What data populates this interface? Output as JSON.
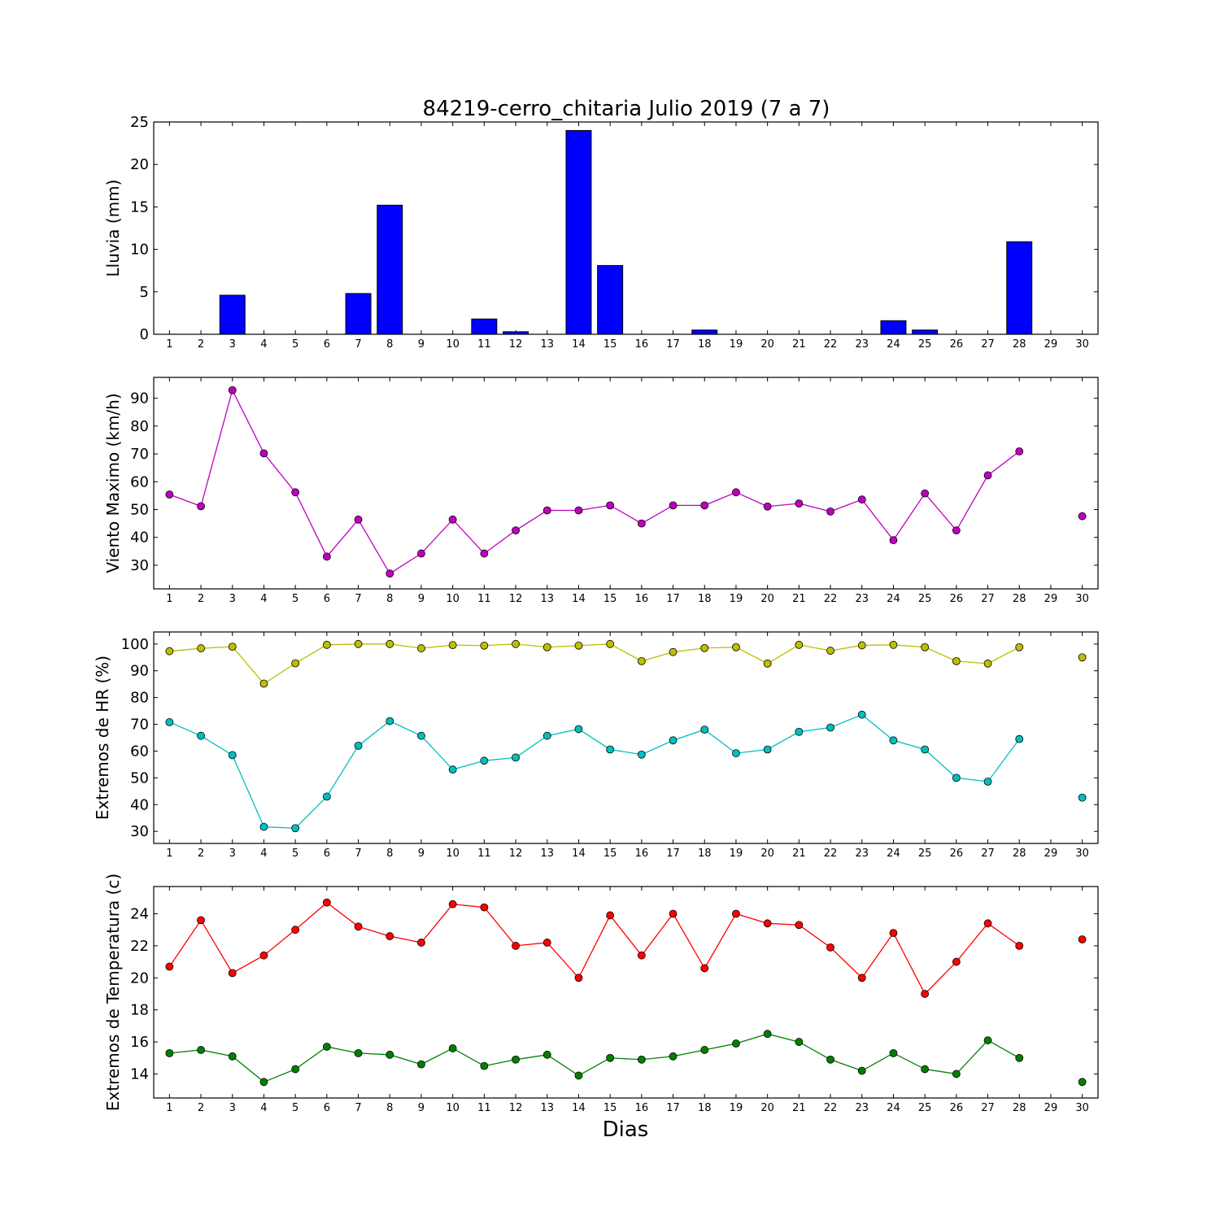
{
  "title": "84219-cerro_chitaria Julio 2019  (7 a 7)",
  "xlabel": "Dias",
  "x_ticks": [
    "1",
    "2",
    "3",
    "4",
    "5",
    "6",
    "7",
    "8",
    "9",
    "10",
    "11",
    "12",
    "13",
    "14",
    "15",
    "16",
    "17",
    "18",
    "19",
    "20",
    "21",
    "22",
    "23",
    "24",
    "25",
    "26",
    "27",
    "28",
    "29",
    "30"
  ],
  "chart_data": [
    {
      "type": "bar",
      "ylabel": "Lluvia (mm)",
      "ylim": [
        0,
        25
      ],
      "y_ticks": [
        0,
        5,
        10,
        15,
        20,
        25
      ],
      "xlim": [
        0.5,
        30.5
      ],
      "color": "#0000ff",
      "series": [
        {
          "x": [
            1,
            2,
            3,
            4,
            5,
            6,
            7,
            8,
            9,
            10,
            11,
            12,
            13,
            14,
            15,
            16,
            17,
            18,
            19,
            20,
            21,
            22,
            23,
            24,
            25,
            26,
            27,
            28,
            29,
            30
          ],
          "values": [
            0,
            0,
            4.6,
            0,
            0,
            0,
            4.8,
            15.2,
            0,
            0,
            1.8,
            0.3,
            0,
            24.0,
            8.1,
            0,
            0,
            0.5,
            0,
            0,
            0,
            0,
            0,
            1.6,
            0.5,
            0,
            0,
            10.9,
            null,
            null
          ]
        }
      ]
    },
    {
      "type": "line",
      "ylabel": "Viento Maximo (km/h)",
      "ylim": [
        21.5,
        97.5
      ],
      "y_ticks": [
        30,
        40,
        50,
        60,
        70,
        80,
        90
      ],
      "xlim": [
        0.5,
        30.5
      ],
      "series": [
        {
          "color": "#bf00bf",
          "x": [
            1,
            2,
            3,
            4,
            5,
            6,
            7,
            8,
            9,
            10,
            11,
            12,
            13,
            14,
            15,
            16,
            17,
            18,
            19,
            20,
            21,
            22,
            23,
            24,
            25,
            26,
            27,
            28,
            29,
            30
          ],
          "values": [
            55.4,
            51.2,
            92.9,
            70.2,
            56.2,
            33.1,
            46.4,
            27.0,
            34.2,
            46.4,
            34.2,
            42.5,
            49.7,
            49.7,
            51.5,
            45.0,
            51.5,
            51.5,
            56.2,
            51.1,
            52.2,
            49.3,
            53.6,
            39.0,
            55.8,
            42.5,
            62.3,
            70.9,
            null,
            47.6
          ]
        }
      ]
    },
    {
      "type": "line",
      "ylabel": "Extremos de HR (%)",
      "ylim": [
        25.5,
        104.5
      ],
      "y_ticks": [
        30,
        40,
        50,
        60,
        70,
        80,
        90,
        100
      ],
      "xlim": [
        0.5,
        30.5
      ],
      "series": [
        {
          "color": "#bfbf00",
          "x": [
            1,
            2,
            3,
            4,
            5,
            6,
            7,
            8,
            9,
            10,
            11,
            12,
            13,
            14,
            15,
            16,
            17,
            18,
            19,
            20,
            21,
            22,
            23,
            24,
            25,
            26,
            27,
            28,
            29,
            30
          ],
          "values": [
            97.3,
            98.4,
            99.0,
            85.2,
            92.8,
            99.7,
            100.0,
            100.0,
            98.4,
            99.6,
            99.4,
            100.0,
            98.8,
            99.4,
            100.0,
            93.6,
            97.0,
            98.5,
            98.8,
            92.7,
            99.7,
            97.5,
            99.5,
            99.7,
            98.8,
            93.6,
            92.7,
            98.8,
            null,
            95.0
          ]
        },
        {
          "color": "#00bfbf",
          "x": [
            1,
            2,
            3,
            4,
            5,
            6,
            7,
            8,
            9,
            10,
            11,
            12,
            13,
            14,
            15,
            16,
            17,
            18,
            19,
            20,
            21,
            22,
            23,
            24,
            25,
            26,
            27,
            28,
            29,
            30
          ],
          "values": [
            70.8,
            65.7,
            58.5,
            31.7,
            31.2,
            43.0,
            62.0,
            71.2,
            65.7,
            53.1,
            56.4,
            57.6,
            65.7,
            68.2,
            60.6,
            58.7,
            64.0,
            68.0,
            59.2,
            60.6,
            67.2,
            68.8,
            73.6,
            64.0,
            60.6,
            50.0,
            48.6,
            64.5,
            null,
            42.6
          ]
        }
      ]
    },
    {
      "type": "line",
      "ylabel": "Extremos de Temperatura (c)",
      "ylim": [
        12.5,
        25.7
      ],
      "y_ticks": [
        14,
        16,
        18,
        20,
        22,
        24
      ],
      "xlim": [
        0.5,
        30.5
      ],
      "series": [
        {
          "color": "#ff0000",
          "x": [
            1,
            2,
            3,
            4,
            5,
            6,
            7,
            8,
            9,
            10,
            11,
            12,
            13,
            14,
            15,
            16,
            17,
            18,
            19,
            20,
            21,
            22,
            23,
            24,
            25,
            26,
            27,
            28,
            29,
            30
          ],
          "values": [
            20.7,
            23.6,
            20.3,
            21.4,
            23.0,
            24.7,
            23.2,
            22.6,
            22.2,
            24.6,
            24.4,
            22.0,
            22.2,
            20.0,
            23.9,
            21.4,
            24.0,
            20.6,
            24.0,
            23.4,
            23.3,
            21.9,
            20.0,
            22.8,
            19.0,
            21.0,
            23.4,
            22.0,
            null,
            22.4
          ]
        },
        {
          "color": "#008000",
          "x": [
            1,
            2,
            3,
            4,
            5,
            6,
            7,
            8,
            9,
            10,
            11,
            12,
            13,
            14,
            15,
            16,
            17,
            18,
            19,
            20,
            21,
            22,
            23,
            24,
            25,
            26,
            27,
            28,
            29,
            30
          ],
          "values": [
            15.3,
            15.5,
            15.1,
            13.5,
            14.3,
            15.7,
            15.3,
            15.2,
            14.6,
            15.6,
            14.5,
            14.9,
            15.2,
            13.9,
            15.0,
            14.9,
            15.1,
            15.5,
            15.9,
            16.5,
            16.0,
            14.9,
            14.2,
            15.3,
            14.3,
            14.0,
            16.1,
            15.0,
            null,
            13.5
          ]
        }
      ]
    }
  ]
}
